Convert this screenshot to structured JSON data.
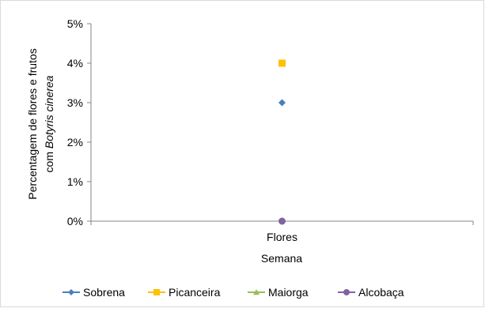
{
  "chart_data": {
    "type": "scatter",
    "categories": [
      "Flores"
    ],
    "xlabel": "Semana",
    "ylabel_line1": "Percentagem de flores e frutos",
    "ylabel_line2_prefix": "com ",
    "ylabel_line2_italic": "Botyris cinerea",
    "ylim": [
      0,
      5
    ],
    "yticks": [
      "0%",
      "1%",
      "2%",
      "3%",
      "4%",
      "5%"
    ],
    "grid": false,
    "legend_position": "bottom",
    "series": [
      {
        "name": "Sobrena",
        "values": [
          3
        ],
        "color": "#4a7ebb",
        "marker": "diamond"
      },
      {
        "name": "Picanceira",
        "values": [
          4
        ],
        "color": "#ffc000",
        "marker": "square"
      },
      {
        "name": "Maiorga",
        "values": [
          null
        ],
        "color": "#9bbb59",
        "marker": "triangle"
      },
      {
        "name": "Alcobaça",
        "values": [
          0
        ],
        "color": "#8064a2",
        "marker": "circle"
      }
    ]
  }
}
